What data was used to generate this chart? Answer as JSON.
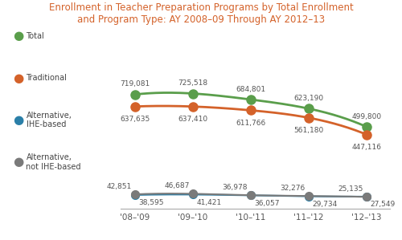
{
  "title_line1": "Enrollment in Teacher Preparation Programs by Total Enrollment",
  "title_line2": "and Program Type: AY 2008–09 Through AY 2012–13",
  "x_labels": [
    "'08–'09",
    "'09–'10",
    "'10–'11",
    "'11–'12",
    "'12–'13"
  ],
  "x_positions": [
    0,
    1,
    2,
    3,
    4
  ],
  "total": [
    719081,
    725518,
    684801,
    623190,
    499800
  ],
  "traditional": [
    637635,
    637410,
    611766,
    561180,
    447116
  ],
  "alt_ihe": [
    38595,
    41421,
    36057,
    29734,
    27549
  ],
  "alt_not_ihe": [
    42851,
    46687,
    36978,
    32276,
    25135
  ],
  "color_total": "#5a9e4b",
  "color_traditional": "#d4622a",
  "color_alt_ihe": "#2a7fa8",
  "color_alt_not_ihe": "#7a7a7a",
  "total_labels": [
    "719,081",
    "725,518",
    "684,801",
    "623,190",
    "499,800"
  ],
  "traditional_labels": [
    "637,635",
    "637,410",
    "611,766",
    "561,180",
    "447,116"
  ],
  "alt_ihe_labels": [
    "38,595",
    "41,421",
    "36,057",
    "29,734",
    "27,549"
  ],
  "alt_not_ihe_labels": [
    "42,851",
    "46,687",
    "36,978",
    "32,276",
    "25,135"
  ],
  "title_color": "#d4622a",
  "background_color": "#ffffff",
  "label_color": "#555555",
  "spine_color": "#aaaaaa",
  "connector_color": "#90c4d0"
}
